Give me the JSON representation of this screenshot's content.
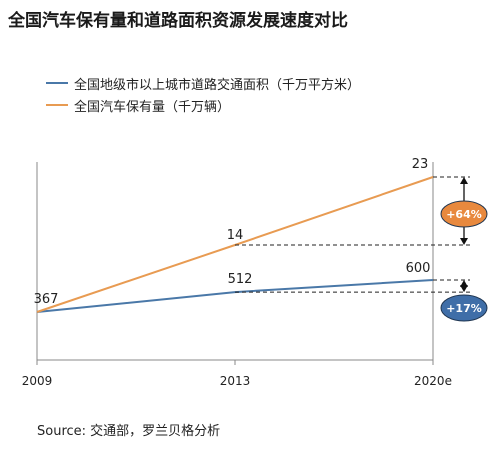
{
  "title": "全国汽车保有量和道路面积资源发展速度对比",
  "source": "Source: 交通部，罗兰贝格分析",
  "colors": {
    "road": "#4a78a8",
    "car": "#e89b52",
    "axis": "#888888",
    "badge_orange": "#e8893e",
    "badge_blue": "#3f6ea8"
  },
  "chart_data": {
    "type": "line",
    "title": "全国汽车保有量和道路面积资源发展速度对比",
    "categories": [
      "2009",
      "2013",
      "2020e"
    ],
    "series": [
      {
        "name": "全国地级市以上城市道路交通面积（千万平方米）",
        "values": [
          367,
          512,
          600
        ],
        "labels": [
          "367",
          "512",
          "600"
        ],
        "color": "#4a78a8"
      },
      {
        "name": "全国汽车保有量（千万辆）",
        "values": [
          null,
          14,
          23
        ],
        "labels": [
          "",
          "14",
          "23"
        ],
        "color": "#e89b52"
      }
    ],
    "annotations": [
      {
        "series": "全国汽车保有量（千万辆）",
        "text": "+64%"
      },
      {
        "series": "全国地级市以上城市道路交通面积（千万平方米）",
        "text": "+17%"
      }
    ],
    "legend": "top-left",
    "grid": false
  }
}
